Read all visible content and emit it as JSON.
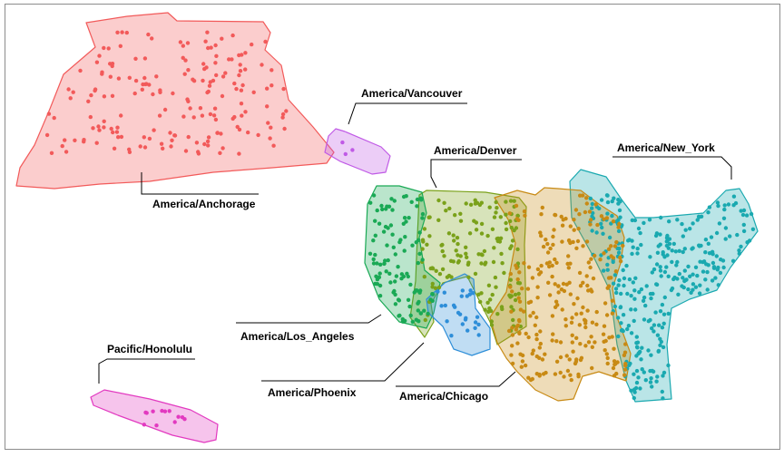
{
  "chart_data": {
    "type": "scatter",
    "title": "",
    "xlabel": "",
    "ylabel": "",
    "grid": false,
    "legend": "none",
    "series": [
      {
        "name": "America/Anchorage",
        "color": "#f25a5a",
        "approx_points": 180
      },
      {
        "name": "America/Vancouver",
        "color": "#c05ae6",
        "approx_points": 3
      },
      {
        "name": "America/Denver",
        "color": "#7aa11a",
        "approx_points": 150
      },
      {
        "name": "America/New_York",
        "color": "#1aa9b0",
        "approx_points": 320
      },
      {
        "name": "America/Los_Angeles",
        "color": "#1aa955",
        "approx_points": 110
      },
      {
        "name": "America/Phoenix",
        "color": "#2e8ed8",
        "approx_points": 25
      },
      {
        "name": "America/Chicago",
        "color": "#c88a14",
        "approx_points": 260
      },
      {
        "name": "Pacific/Honolulu",
        "color": "#e23ac0",
        "approx_points": 12
      }
    ]
  }
}
